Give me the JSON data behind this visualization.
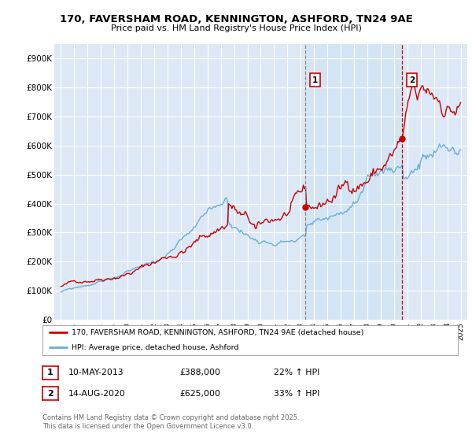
{
  "title": "170, FAVERSHAM ROAD, KENNINGTON, ASHFORD, TN24 9AE",
  "subtitle": "Price paid vs. HM Land Registry's House Price Index (HPI)",
  "ylim": [
    0,
    950000
  ],
  "yticks": [
    0,
    100000,
    200000,
    300000,
    400000,
    500000,
    600000,
    700000,
    800000,
    900000
  ],
  "ytick_labels": [
    "£0",
    "£100K",
    "£200K",
    "£300K",
    "£400K",
    "£500K",
    "£600K",
    "£700K",
    "£800K",
    "£900K"
  ],
  "xlim_start": 1994.5,
  "xlim_end": 2025.5,
  "xticks": [
    1995,
    1996,
    1997,
    1998,
    1999,
    2000,
    2001,
    2002,
    2003,
    2004,
    2005,
    2006,
    2007,
    2008,
    2009,
    2010,
    2011,
    2012,
    2013,
    2014,
    2015,
    2016,
    2017,
    2018,
    2019,
    2020,
    2021,
    2022,
    2023,
    2024,
    2025
  ],
  "background_color": "#ffffff",
  "chart_bg_color": "#dce8f5",
  "grid_color": "#ffffff",
  "red_line_color": "#cc0000",
  "blue_line_color": "#6baed6",
  "marker1_year": 2013.36,
  "marker2_year": 2020.62,
  "marker1_price": 388000,
  "marker2_price": 625000,
  "shade_color": "#c8dcf0",
  "legend_label_red": "170, FAVERSHAM ROAD, KENNINGTON, ASHFORD, TN24 9AE (detached house)",
  "legend_label_blue": "HPI: Average price, detached house, Ashford",
  "table_row1": [
    "1",
    "10-MAY-2013",
    "£388,000",
    "22% ↑ HPI"
  ],
  "table_row2": [
    "2",
    "14-AUG-2020",
    "£625,000",
    "33% ↑ HPI"
  ],
  "footnote": "Contains HM Land Registry data © Crown copyright and database right 2025.\nThis data is licensed under the Open Government Licence v3.0."
}
